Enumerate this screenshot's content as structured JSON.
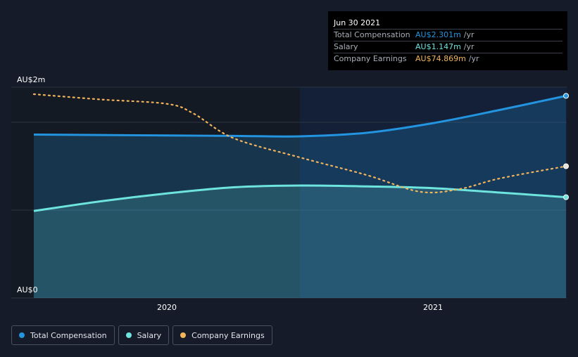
{
  "tooltip": {
    "date": "Jun 30 2021",
    "rows": [
      {
        "label": "Total Compensation",
        "value": "AU$2.301m",
        "unit": "/yr",
        "color": "#2394df"
      },
      {
        "label": "Salary",
        "value": "AU$1.147m",
        "unit": "/yr",
        "color": "#6ee4de"
      },
      {
        "label": "Company Earnings",
        "value": "AU$74.869m",
        "unit": "/yr",
        "color": "#f2b45a"
      }
    ]
  },
  "legend": [
    {
      "label": "Total Compensation",
      "color": "#2394df"
    },
    {
      "label": "Salary",
      "color": "#6ee4de"
    },
    {
      "label": "Company Earnings",
      "color": "#f2b45a"
    }
  ],
  "chart_data": {
    "type": "area",
    "title": "",
    "xlabel": "",
    "ylabel": "",
    "y_tick_labels": [
      "AU$0",
      "AU$2m"
    ],
    "x_tick_labels": [
      "2020",
      "2021"
    ],
    "ylim": [
      0,
      2.4
    ],
    "xlim": [
      2019.45,
      2021.5
    ],
    "x_ticks": [
      2020.0,
      2021.0
    ],
    "forecast_start": 2020.5,
    "series": [
      {
        "name": "Total Compensation",
        "color": "#2394df",
        "unit": "AU$m",
        "x": [
          2019.5,
          2019.75,
          2020.0,
          2020.25,
          2020.5,
          2020.75,
          2021.0,
          2021.25,
          2021.5
        ],
        "values": [
          1.86,
          1.855,
          1.85,
          1.845,
          1.84,
          1.88,
          1.99,
          2.14,
          2.301
        ]
      },
      {
        "name": "Salary",
        "color": "#6ee4de",
        "unit": "AU$m",
        "x": [
          2019.5,
          2019.75,
          2020.0,
          2020.25,
          2020.5,
          2020.75,
          2021.0,
          2021.25,
          2021.5
        ],
        "values": [
          0.99,
          1.1,
          1.19,
          1.26,
          1.28,
          1.27,
          1.25,
          1.2,
          1.147
        ]
      },
      {
        "name": "Company Earnings",
        "color": "#f2b45a",
        "unit": "AU$m",
        "scaled_to_axis": true,
        "x": [
          2019.5,
          2019.75,
          2020.0,
          2020.1,
          2020.25,
          2020.5,
          2020.75,
          2020.95,
          2021.1,
          2021.25,
          2021.5
        ],
        "values": [
          2.32,
          2.26,
          2.21,
          2.1,
          1.82,
          1.6,
          1.4,
          1.21,
          1.24,
          1.36,
          1.5
        ]
      }
    ]
  }
}
